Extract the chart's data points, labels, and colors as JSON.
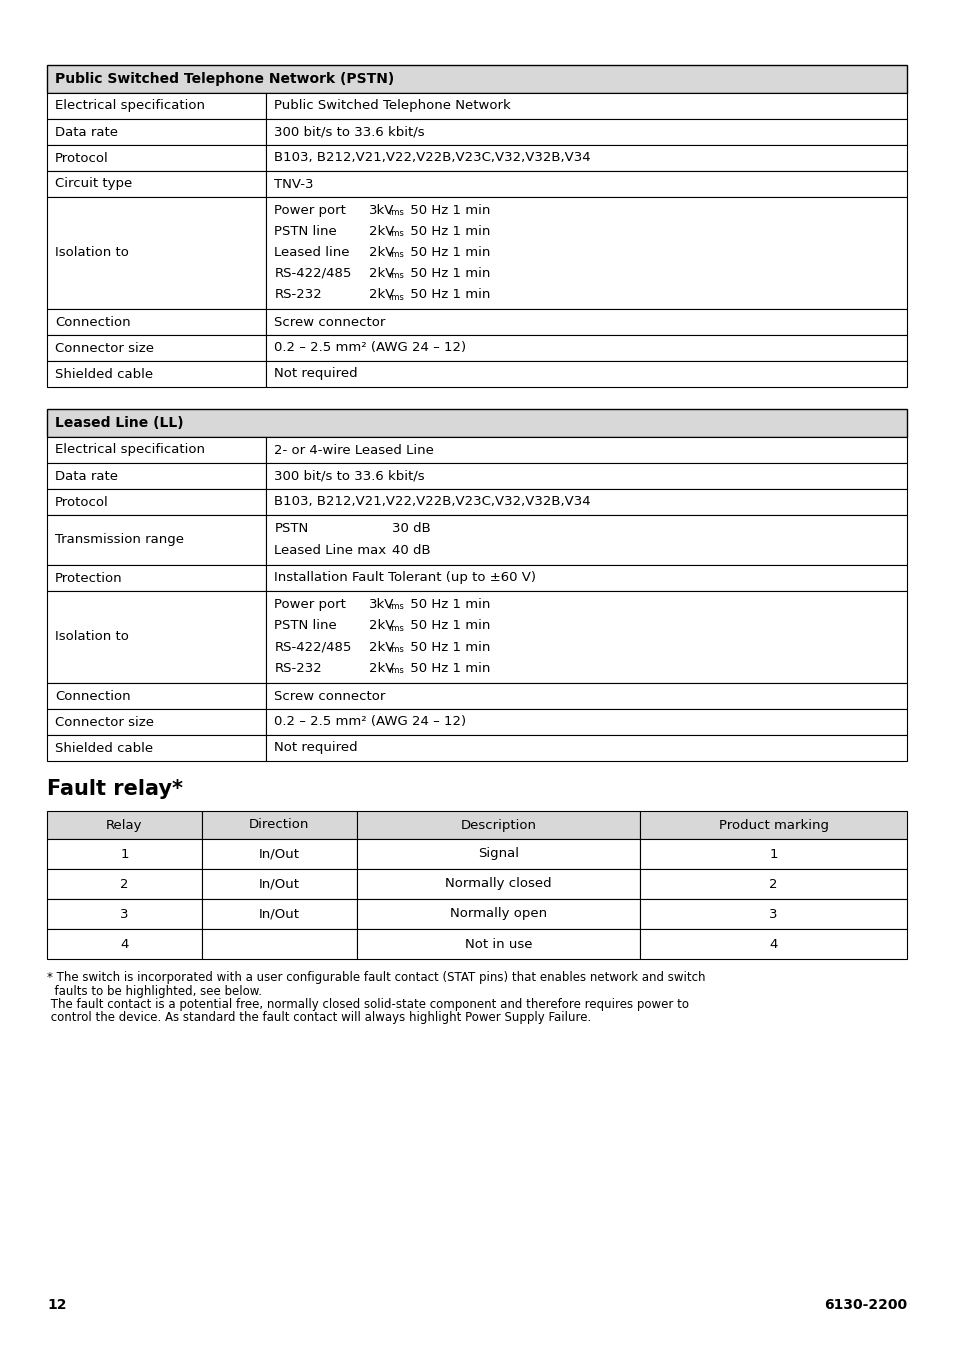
{
  "background_color": "#ffffff",
  "pstn_table": {
    "header": "Public Switched Telephone Network (PSTN)",
    "header_bg": "#d8d8d8",
    "rows": [
      [
        "Electrical specification",
        "Public Switched Telephone Network"
      ],
      [
        "Data rate",
        "300 bit/s to 33.6 kbit/s"
      ],
      [
        "Protocol",
        "B103, B212,V21,V22,V22B,V23C,V32,V32B,V34"
      ],
      [
        "Circuit type",
        "TNV-3"
      ],
      [
        "Isolation to",
        "isolation_multi_pstn"
      ],
      [
        "Connection",
        "Screw connector"
      ],
      [
        "Connector size",
        "0.2 – 2.5 mm² (AWG 24 – 12)"
      ],
      [
        "Shielded cable",
        "Not required"
      ]
    ]
  },
  "ll_table": {
    "header": "Leased Line (LL)",
    "header_bg": "#d8d8d8",
    "rows": [
      [
        "Electrical specification",
        "2- or 4-wire Leased Line"
      ],
      [
        "Data rate",
        "300 bit/s to 33.6 kbit/s"
      ],
      [
        "Protocol",
        "B103, B212,V21,V22,V22B,V23C,V32,V32B,V34"
      ],
      [
        "Transmission range",
        "transmission_multi"
      ],
      [
        "Protection",
        "Installation Fault Tolerant (up to ±60 V)"
      ],
      [
        "Isolation to",
        "isolation_multi_ll"
      ],
      [
        "Connection",
        "Screw connector"
      ],
      [
        "Connector size",
        "0.2 – 2.5 mm² (AWG 24 – 12)"
      ],
      [
        "Shielded cable",
        "Not required"
      ]
    ]
  },
  "fault_relay_title": "Fault relay*",
  "fault_relay_header": [
    "Relay",
    "Direction",
    "Description",
    "Product marking"
  ],
  "fault_relay_header_bg": "#d8d8d8",
  "fault_relay_rows": [
    [
      "1",
      "In/Out",
      "Signal",
      "1"
    ],
    [
      "2",
      "In/Out",
      "Normally closed",
      "2"
    ],
    [
      "3",
      "In/Out",
      "Normally open",
      "3"
    ],
    [
      "4",
      "",
      "Not in use",
      "4"
    ]
  ],
  "footnote_lines": [
    "* The switch is incorporated with a user configurable fault contact (STAT pins) that enables network and switch",
    "  faults to be highlighted, see below.",
    " The fault contact is a potential free, normally closed solid-state component and therefore requires power to",
    " control the device. As standard the fault contact will always highlight Power Supply Failure."
  ],
  "page_number": "12",
  "doc_number": "6130-2200",
  "text_color": "#000000",
  "font_size": 9.5,
  "header_font_size": 10.0
}
